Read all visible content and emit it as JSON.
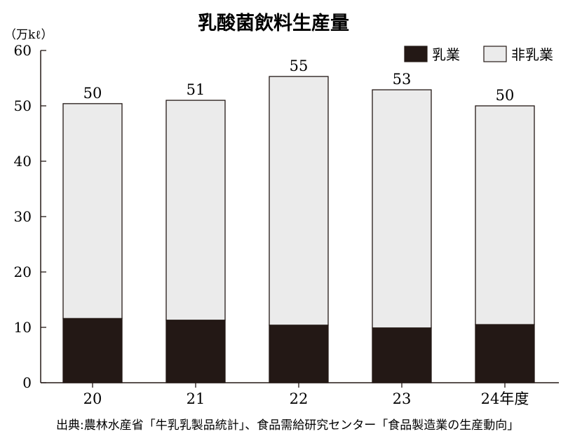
{
  "title": "乳酸菌飲料生産量",
  "unit": "（万kℓ）",
  "source": "出典:農林水産省「牛乳乳製品統計」、食品需給研究センター「食品製造業の生産動向」",
  "colors": {
    "dairy": "#231815",
    "non_dairy": "#ebebeb",
    "axis": "#231815"
  },
  "chart_data": {
    "type": "bar",
    "stacked": true,
    "categories": [
      "20",
      "21",
      "22",
      "23",
      "24年度"
    ],
    "series": [
      {
        "name": "乳業",
        "values": [
          11.6,
          11.3,
          10.4,
          9.9,
          10.5
        ]
      },
      {
        "name": "非乳業",
        "values": [
          38.8,
          39.7,
          44.9,
          43.0,
          39.5
        ]
      }
    ],
    "totals": [
      50,
      51,
      55,
      53,
      50
    ],
    "ylim": [
      0,
      60
    ],
    "yticks": [
      0,
      10,
      20,
      30,
      40,
      50,
      60
    ],
    "grid": false,
    "legend": "top-right"
  }
}
